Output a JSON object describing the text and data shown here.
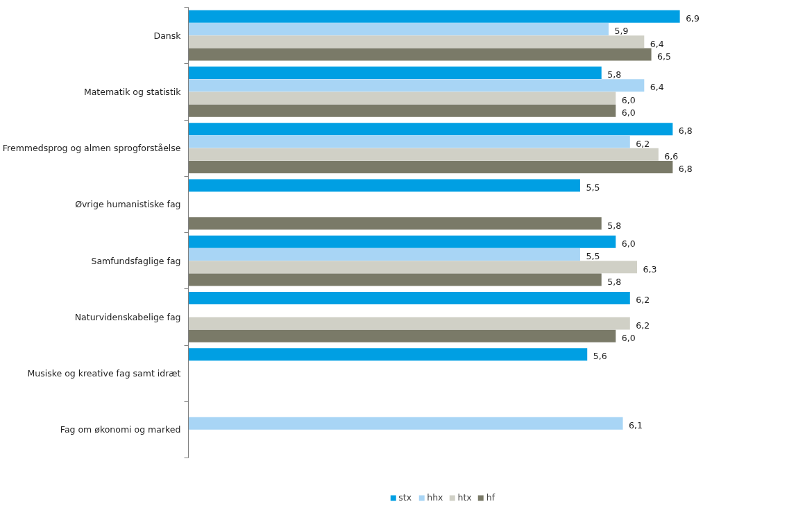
{
  "chart_data": {
    "type": "bar",
    "orientation": "horizontal",
    "categories": [
      "Dansk",
      "Matematik og statistik",
      "Fremmedsprog og almen sprogforståelse",
      "Øvrige humanistiske fag",
      "Samfundsfaglige fag",
      "Naturvidenskabelige fag",
      "Musiske og kreative fag samt idræt",
      "Fag om økonomi og marked"
    ],
    "series": [
      {
        "name": "stx",
        "color": "#009fe3",
        "values": [
          6.9,
          5.8,
          6.8,
          5.5,
          6.0,
          6.2,
          5.6,
          null
        ],
        "value_labels": [
          "6,9",
          "5,8",
          "6,8",
          "5,5",
          "6,0",
          "6,2",
          "5,6",
          null
        ]
      },
      {
        "name": "hhx",
        "color": "#a8d5f5",
        "values": [
          5.9,
          6.4,
          6.2,
          null,
          5.5,
          null,
          null,
          6.1
        ],
        "value_labels": [
          "5,9",
          "6,4",
          "6,2",
          null,
          "5,5",
          null,
          null,
          "6,1"
        ]
      },
      {
        "name": "htx",
        "color": "#d0d0c6",
        "values": [
          6.4,
          6.0,
          6.6,
          null,
          6.3,
          6.2,
          null,
          null
        ],
        "value_labels": [
          "6,4",
          "6,0",
          "6,6",
          null,
          "6,3",
          "6,2",
          null,
          null
        ]
      },
      {
        "name": "hf",
        "color": "#7a7a68",
        "values": [
          6.5,
          6.0,
          6.8,
          5.8,
          5.8,
          6.0,
          null,
          null
        ],
        "value_labels": [
          "6,5",
          "6,0",
          "6,8",
          "5,8",
          "5,8",
          "6,0",
          null,
          null
        ]
      }
    ],
    "legend": "bottom",
    "grid": false
  }
}
